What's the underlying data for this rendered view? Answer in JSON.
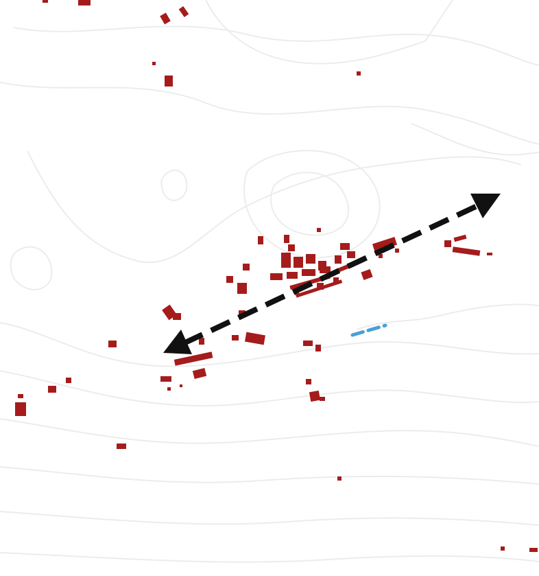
{
  "map": {
    "type": "settlement-plan",
    "background_color": "#ffffff",
    "colors": {
      "contour": "#ececec",
      "building": "#a51c1c",
      "water": "#4a9fd8",
      "axis_arrow": "#111111"
    },
    "layers": [
      "contour-lines",
      "buildings",
      "stream",
      "settlement-axis-arrow"
    ],
    "arrow": {
      "style": "dashed",
      "heads": "both",
      "icon": "double-headed-arrow-icon"
    }
  }
}
